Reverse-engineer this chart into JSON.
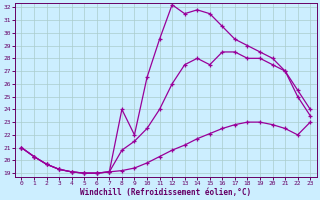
{
  "title": "",
  "xlabel": "Windchill (Refroidissement éolien,°C)",
  "bg_color": "#cceeff",
  "grid_color": "#aacccc",
  "line_color": "#990099",
  "xlim": [
    -0.5,
    23.5
  ],
  "ylim": [
    18.7,
    32.3
  ],
  "xticks": [
    0,
    1,
    2,
    3,
    4,
    5,
    6,
    7,
    8,
    9,
    10,
    11,
    12,
    13,
    14,
    15,
    16,
    17,
    18,
    19,
    20,
    21,
    22,
    23
  ],
  "yticks": [
    19,
    20,
    21,
    22,
    23,
    24,
    25,
    26,
    27,
    28,
    29,
    30,
    31,
    32
  ],
  "curve1_x": [
    0,
    1,
    2,
    3,
    4,
    5,
    6,
    7,
    8,
    9,
    10,
    11,
    12,
    13,
    14,
    15,
    16,
    17,
    18,
    19,
    20,
    21,
    22,
    23
  ],
  "curve1_y": [
    21.0,
    20.3,
    19.7,
    19.3,
    19.1,
    19.0,
    19.0,
    19.1,
    19.2,
    19.4,
    19.8,
    20.3,
    20.8,
    21.2,
    21.7,
    22.1,
    22.5,
    22.8,
    23.0,
    23.0,
    22.8,
    22.5,
    22.0,
    23.0
  ],
  "curve2_x": [
    0,
    1,
    2,
    3,
    4,
    5,
    6,
    7,
    8,
    9,
    10,
    11,
    12,
    13,
    14,
    15,
    16,
    17,
    18,
    19,
    20,
    21,
    22,
    23
  ],
  "curve2_y": [
    21.0,
    20.3,
    19.7,
    19.3,
    19.1,
    19.0,
    19.0,
    19.1,
    20.8,
    21.5,
    22.5,
    24.0,
    26.0,
    27.5,
    28.0,
    27.5,
    28.5,
    28.5,
    28.0,
    28.0,
    27.5,
    27.0,
    25.5,
    24.0
  ],
  "curve3_x": [
    0,
    1,
    2,
    3,
    4,
    5,
    6,
    7,
    8,
    9,
    10,
    11,
    12,
    13,
    14,
    15,
    16,
    17,
    18,
    19,
    20,
    21,
    22,
    23
  ],
  "curve3_y": [
    21.0,
    20.3,
    19.7,
    19.3,
    19.1,
    19.0,
    19.0,
    19.1,
    24.0,
    22.0,
    26.5,
    29.5,
    32.2,
    31.5,
    31.8,
    31.5,
    30.5,
    29.5,
    29.0,
    28.5,
    28.0,
    27.0,
    25.0,
    23.5
  ]
}
